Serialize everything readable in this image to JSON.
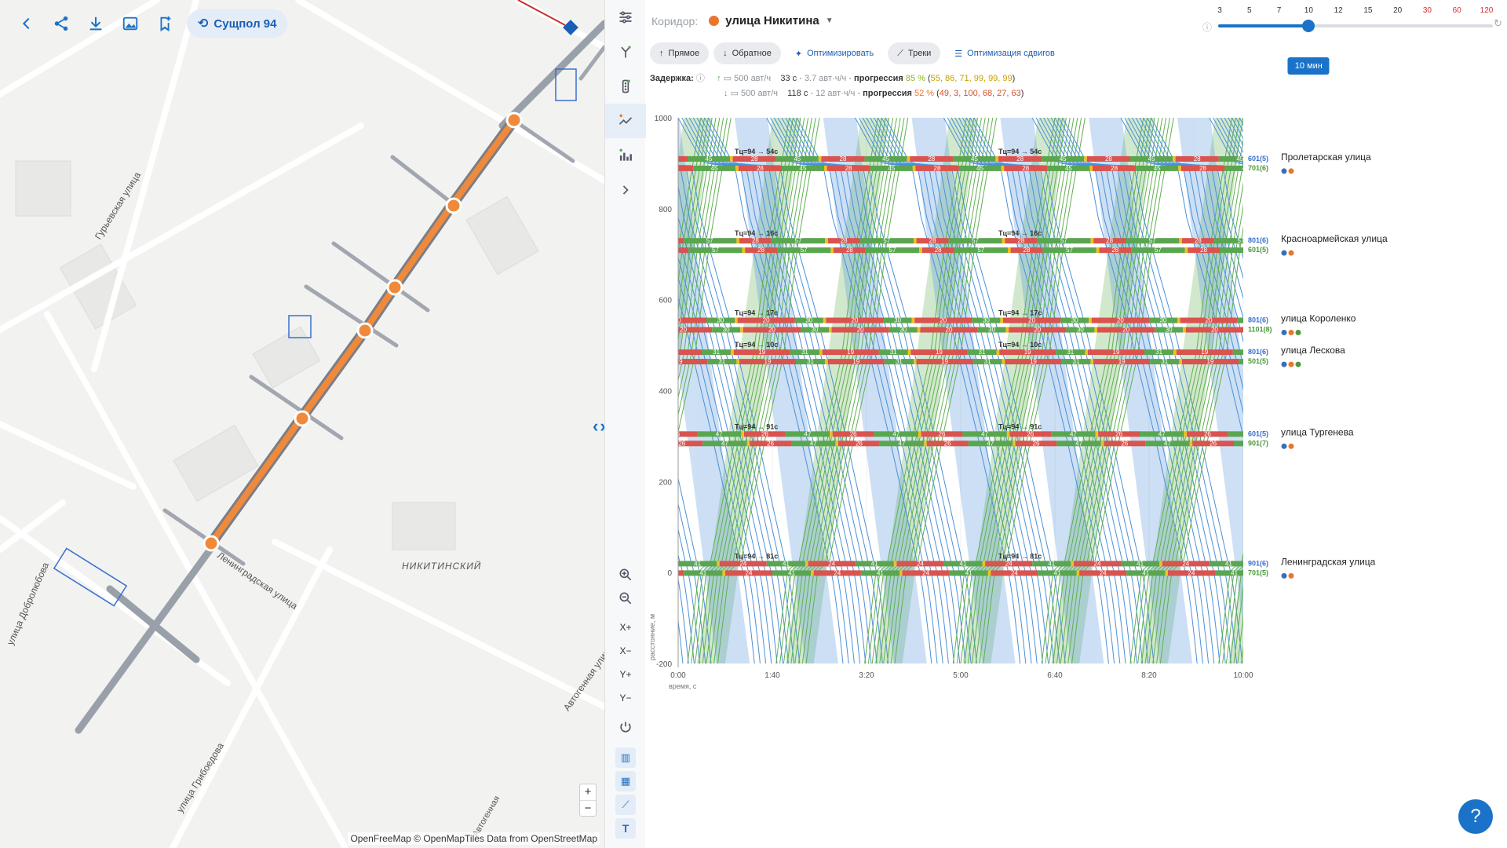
{
  "toolbar": {
    "plan_label": "Сущпол 94"
  },
  "map": {
    "district_label": "НИКИТИНСКИЙ",
    "street_labels": [
      "Гурьевская улица",
      "улица Добролюбова",
      "Ленинградская улица",
      "Автогенная улица",
      "улица Грибоедова",
      "Автогенная"
    ],
    "attribution": "OpenFreeMap © OpenMapTiles Data from OpenStreetMap",
    "zoom_in": "+",
    "zoom_out": "−"
  },
  "side": {
    "xplus": "X+",
    "xminus": "X−",
    "yplus": "Y+",
    "yminus": "Y−"
  },
  "panel": {
    "corridor_label": "Коридор:",
    "corridor_name": "улица Никитина",
    "chips": {
      "forward": "Прямое",
      "backward": "Обратное",
      "optimize": "Оптимизировать",
      "tracks": "Треки",
      "shift_opt": "Оптимизация сдвигов"
    },
    "delay_label": "Задержка:",
    "fwd": {
      "flow": "500 авт/ч",
      "delay": "33 с",
      "rate": "3.7 авт·ч/ч",
      "prog_label": "прогрессия",
      "prog": "85 %",
      "prog_list": "55, 86, 71, 99, 99, 99"
    },
    "bwd": {
      "flow": "500 авт/ч",
      "delay": "118 с",
      "rate": "12 авт·ч/ч",
      "prog_label": "прогрессия",
      "prog": "52 %",
      "prog_list": "49, 3, 100, 68, 27, 63"
    },
    "slider": {
      "ticks": [
        "3",
        "5",
        "7",
        "10",
        "12",
        "15",
        "20",
        "30",
        "60",
        "120"
      ],
      "value": "10 мин",
      "value_index": 3
    }
  },
  "chart_data": {
    "type": "time-space-diagram",
    "xlabel": "время, с",
    "ylabel": "расстояние, м",
    "x_ticks": [
      "0:00",
      "1:40",
      "3:20",
      "5:00",
      "6:40",
      "8:20",
      "10:00"
    ],
    "x_range_s": [
      0,
      600
    ],
    "y_ticks": [
      1000,
      800,
      600,
      400,
      200,
      0,
      -200
    ],
    "y_range_m": [
      -200,
      1000
    ],
    "cycle_s": 94,
    "intersections": [
      {
        "name": "Пролетарская улица",
        "y": 900,
        "codes": [
          "601(5)",
          "701(6)"
        ],
        "cycle_note": "Тц=94 → 54с",
        "green": [
          45,
          45
        ],
        "red": [
          28,
          28
        ],
        "dots": [
          "#3a6fb5",
          "#e8762b"
        ]
      },
      {
        "name": "Красноармейская улица",
        "y": 720,
        "codes": [
          "801(6)",
          "601(5)"
        ],
        "cycle_note": "Тц=94 → 16с",
        "green": [
          57,
          57
        ],
        "red": [
          28,
          28
        ],
        "dots": [
          "#3a6fb5",
          "#e8762b"
        ]
      },
      {
        "name": "улица Короленко",
        "y": 545,
        "codes": [
          "801(6)",
          "1101(8)"
        ],
        "cycle_note": "Тц=94 → 17с",
        "green": [
          30,
          30
        ],
        "red": [
          20,
          20
        ],
        "dots": [
          "#3a6fb5",
          "#e8762b",
          "#4a9a3a"
        ]
      },
      {
        "name": "улица Лескова",
        "y": 475,
        "codes": [
          "801(6)",
          "501(5)"
        ],
        "cycle_note": "Тц=94 → 10с",
        "green": [
          31,
          31
        ],
        "red": [
          19,
          19
        ],
        "dots": [
          "#3a6fb5",
          "#e8762b",
          "#4a9a3a"
        ]
      },
      {
        "name": "улица Тургенева",
        "y": 295,
        "codes": [
          "601(5)",
          "901(7)"
        ],
        "cycle_note": "Тц=94 → 91с",
        "green": [
          47,
          47
        ],
        "red": [
          26,
          26
        ],
        "dots": [
          "#3a6fb5",
          "#e8762b"
        ]
      },
      {
        "name": "Ленинградская улица",
        "y": 10,
        "codes": [
          "901(6)",
          "701(5)"
        ],
        "cycle_note": "Тц=94 → 81с",
        "green": [
          41,
          41
        ],
        "red": [
          24,
          24
        ],
        "dots": [
          "#3a6fb5",
          "#e8762b"
        ]
      }
    ],
    "colors": {
      "green": "#5aa650",
      "red": "#d9534f",
      "amber": "#f0c020",
      "fwd": "#4a90d9",
      "bwd": "#5fb050"
    }
  }
}
